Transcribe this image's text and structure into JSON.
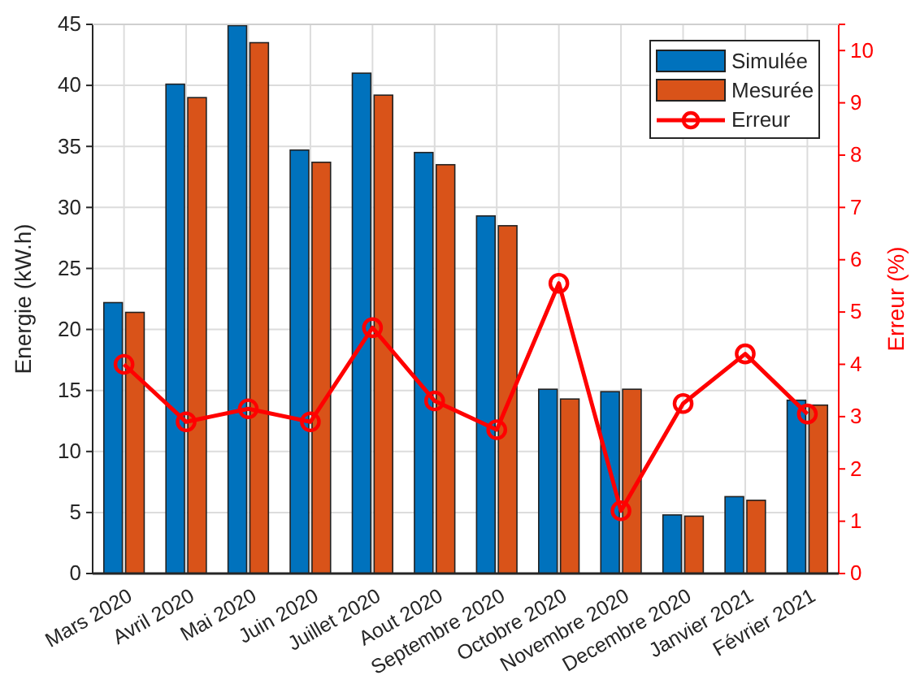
{
  "chart_data": {
    "type": "bar",
    "categories": [
      "Mars 2020",
      "Avril 2020",
      "Mai 2020",
      "Juin 2020",
      "Juillet 2020",
      "Aout 2020",
      "Septembre 2020",
      "Octobre 2020",
      "Novembre 2020",
      "Decembre 2020",
      "Janvier 2021",
      "Février 2021"
    ],
    "ylabel": "Energie (kW.h)",
    "y2label": "Erreur (%)",
    "series": [
      {
        "name": "Simulée",
        "color": "#0072bd",
        "values": [
          22.2,
          40.1,
          44.9,
          34.7,
          41.0,
          34.5,
          29.3,
          15.1,
          14.9,
          4.8,
          6.3,
          14.2
        ]
      },
      {
        "name": "Mesurée",
        "color": "#d95319",
        "values": [
          21.4,
          39.0,
          43.5,
          33.7,
          39.2,
          33.5,
          28.5,
          14.3,
          15.1,
          4.7,
          6.0,
          13.8
        ]
      },
      {
        "name": "Erreur",
        "type": "line",
        "axis": "y2",
        "color": "#ff0000",
        "marker": "circle",
        "line_style": "solid",
        "values": [
          4.0,
          2.9,
          3.15,
          2.9,
          4.7,
          3.3,
          2.75,
          5.55,
          1.2,
          3.25,
          4.2,
          3.05
        ]
      }
    ],
    "ylim": [
      0,
      45
    ],
    "yticks": [
      0,
      5,
      10,
      15,
      20,
      25,
      30,
      35,
      40,
      45
    ],
    "y2lim": [
      0,
      10.5
    ],
    "y2ticks": [
      0,
      1,
      2,
      3,
      4,
      5,
      6,
      7,
      8,
      9,
      10
    ],
    "grid": true,
    "legend": "top right"
  }
}
